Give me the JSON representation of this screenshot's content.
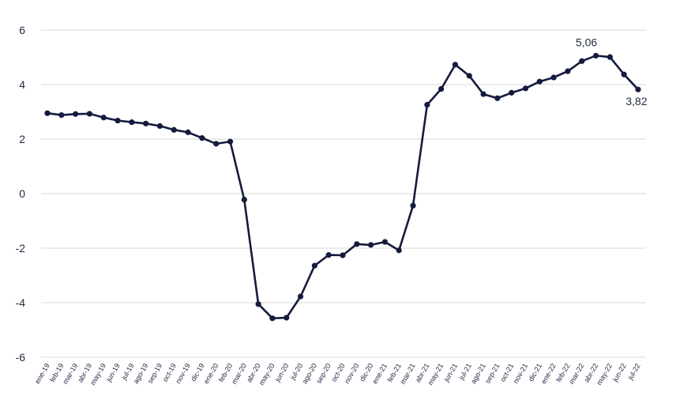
{
  "chart_data": {
    "type": "line",
    "title": "",
    "xlabel": "",
    "ylabel": "",
    "ylim": [
      -6,
      6
    ],
    "yticks": [
      6,
      4,
      2,
      0,
      -2,
      -4,
      -6
    ],
    "ytick_labels": [
      "6",
      "4",
      "2",
      "0",
      "-2",
      "-4",
      "-6"
    ],
    "grid": true,
    "legend": "none",
    "line_color": "#141b3d",
    "categories": [
      "ene-19",
      "feb-19",
      "mar-19",
      "abr-19",
      "may-19",
      "jun-19",
      "jul-19",
      "ago-19",
      "sep-19",
      "oct-19",
      "nov-19",
      "dic-19",
      "ene-20",
      "feb-20",
      "mar-20",
      "abr-20",
      "may-20",
      "jun-20",
      "jul-20",
      "ago-20",
      "sep-20",
      "oct-20",
      "nov-20",
      "dic-20",
      "ene-21",
      "feb-21",
      "mar-21",
      "abr-21",
      "may-21",
      "jun-21",
      "jul-21",
      "ago-21",
      "sep-21",
      "oct-21",
      "nov-21",
      "dic-21",
      "ene-22",
      "feb-22",
      "mar-22",
      "abr-22",
      "may-22",
      "jun-22",
      "jul-22"
    ],
    "series": [
      {
        "values": [
          2.95,
          2.88,
          2.92,
          2.93,
          2.79,
          2.68,
          2.62,
          2.57,
          2.48,
          2.34,
          2.25,
          2.04,
          1.83,
          1.91,
          -0.22,
          -4.05,
          -4.57,
          -4.55,
          -3.77,
          -2.64,
          -2.25,
          -2.26,
          -1.85,
          -1.88,
          -1.77,
          -2.08,
          -0.44,
          3.26,
          3.84,
          4.73,
          4.32,
          3.65,
          3.5,
          3.7,
          3.86,
          4.11,
          4.26,
          4.49,
          4.86,
          5.06,
          5.01,
          4.37,
          3.82
        ]
      }
    ],
    "annotations": [
      {
        "index": 39,
        "text": "5,06"
      },
      {
        "index": 42,
        "text": "3,82"
      }
    ]
  }
}
